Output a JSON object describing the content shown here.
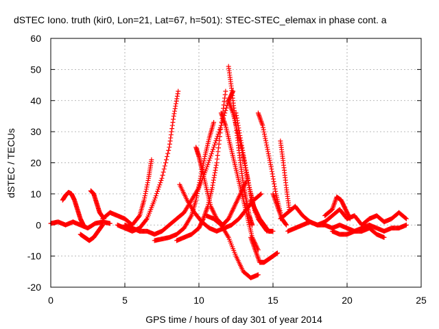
{
  "chart_data": {
    "type": "scatter",
    "title": "dSTEC Iono. truth (kir0, Lon=21, Lat=67, h=501): STEC-STEC_elemax in phase cont. a",
    "xlabel": "GPS time / hours of day 301 of year 2014",
    "ylabel": "dSTEC  / TECUs",
    "xlim": [
      0,
      25
    ],
    "ylim": [
      -20,
      60
    ],
    "xticks": [
      0,
      5,
      10,
      15,
      20,
      25
    ],
    "yticks": [
      -20,
      -10,
      0,
      10,
      20,
      30,
      40,
      50,
      60
    ],
    "grid": true,
    "marker": "+",
    "color": "#ff0000",
    "series": [
      {
        "name": "",
        "x": [
          0.0,
          0.5,
          1.0,
          1.5,
          2.0,
          2.5,
          3.0,
          3.5,
          4.0
        ],
        "y": [
          0.5,
          1.0,
          0.0,
          1.0,
          0.0,
          -1.0,
          0.5,
          1.0,
          0.5
        ]
      },
      {
        "name": "",
        "x": [
          0.8,
          1.0,
          1.2,
          1.4,
          1.6,
          1.8,
          2.0,
          2.2
        ],
        "y": [
          8,
          9.5,
          10.5,
          10,
          8,
          5,
          2,
          0
        ]
      },
      {
        "name": "",
        "x": [
          2.0,
          2.3,
          2.6,
          2.9,
          3.2,
          3.5
        ],
        "y": [
          -3,
          -4,
          -5,
          -4,
          -2,
          0
        ]
      },
      {
        "name": "",
        "x": [
          2.7,
          2.9,
          3.1,
          3.3,
          3.6
        ],
        "y": [
          11,
          10,
          7,
          4,
          2
        ]
      },
      {
        "name": "",
        "x": [
          3.5,
          4.0,
          4.5,
          5.0,
          5.5,
          6.0,
          6.3,
          6.6,
          6.8
        ],
        "y": [
          2,
          4,
          3,
          2,
          0,
          3,
          8,
          15,
          21
        ]
      },
      {
        "name": "",
        "x": [
          4.5,
          5.0,
          5.5,
          6.0,
          6.5,
          7.0,
          7.5,
          8.0,
          8.3,
          8.6
        ],
        "y": [
          0,
          -1,
          -2,
          -1,
          2,
          8,
          15,
          25,
          35,
          43
        ]
      },
      {
        "name": "",
        "x": [
          5.0,
          5.5,
          6.0,
          6.5,
          7.0,
          7.5,
          8.0,
          8.5,
          9.0,
          9.5,
          10.0,
          10.5,
          11.0,
          11.5,
          12.0,
          12.3
        ],
        "y": [
          0,
          -1,
          -2,
          -2,
          -3,
          -2,
          0,
          2,
          4,
          8,
          12,
          18,
          25,
          32,
          40,
          43
        ]
      },
      {
        "name": "",
        "x": [
          7.0,
          7.5,
          8.0,
          8.5,
          9.0,
          9.5,
          9.8,
          10.1,
          10.4,
          10.7,
          11.0
        ],
        "y": [
          -5,
          -4.5,
          -4,
          -3,
          -1,
          3,
          8,
          15,
          22,
          28,
          33
        ]
      },
      {
        "name": "",
        "x": [
          8.5,
          9.0,
          9.5,
          10.0,
          10.3,
          10.6,
          10.9,
          11.2,
          11.5,
          11.8
        ],
        "y": [
          -5,
          -4,
          -3,
          -1,
          2,
          6,
          12,
          20,
          32,
          43
        ]
      },
      {
        "name": "",
        "x": [
          8.7,
          9.2,
          9.7,
          10.2,
          10.7,
          11.2,
          11.7,
          12.2,
          12.7,
          13.2,
          13.7,
          14.2
        ],
        "y": [
          13,
          8,
          4,
          1,
          -1,
          -2,
          -1,
          0,
          2,
          5,
          8,
          10
        ]
      },
      {
        "name": "",
        "x": [
          9.8,
          10.0,
          10.2,
          10.5,
          10.8,
          11.2,
          11.6,
          12.0,
          12.4,
          12.8,
          13.2
        ],
        "y": [
          25,
          22,
          18,
          12,
          6,
          2,
          0,
          2,
          6,
          10,
          14
        ]
      },
      {
        "name": "",
        "x": [
          10.5,
          11.0,
          11.5,
          12.0,
          12.5,
          13.0,
          13.5,
          14.0
        ],
        "y": [
          3,
          2,
          0,
          -4,
          -10,
          -15,
          -17,
          -16
        ]
      },
      {
        "name": "",
        "x": [
          11.5,
          11.8,
          12.1,
          12.4,
          12.7,
          13.0,
          13.3,
          13.6,
          14.0
        ],
        "y": [
          36,
          32,
          26,
          20,
          14,
          8,
          2,
          -4,
          -8
        ]
      },
      {
        "name": "",
        "x": [
          12.0,
          12.3,
          12.6,
          12.9,
          13.2,
          13.5,
          13.8
        ],
        "y": [
          40,
          36,
          30,
          24,
          17,
          10,
          4
        ]
      },
      {
        "name": "",
        "x": [
          12.0,
          12.2,
          12.4,
          12.6,
          12.8,
          13.0,
          13.2,
          13.4,
          13.6
        ],
        "y": [
          51,
          44,
          36,
          28,
          20,
          13,
          8,
          3,
          0
        ]
      },
      {
        "name": "",
        "x": [
          12.5,
          12.8,
          13.1,
          13.4,
          13.7,
          14.0,
          14.3,
          14.6
        ],
        "y": [
          36,
          28,
          20,
          12,
          6,
          2,
          0,
          -2
        ]
      },
      {
        "name": "",
        "x": [
          13.5,
          13.8,
          14.1,
          14.4,
          14.7,
          15.0,
          15.3
        ],
        "y": [
          -4,
          -8,
          -12,
          -12,
          -11,
          -10,
          -9
        ]
      },
      {
        "name": "",
        "x": [
          14.0,
          14.3,
          14.6,
          14.9,
          15.2,
          15.5
        ],
        "y": [
          36,
          32,
          25,
          18,
          10,
          4
        ]
      },
      {
        "name": "",
        "x": [
          13.5,
          13.8,
          14.1,
          14.4,
          14.7,
          15.0
        ],
        "y": [
          8,
          5,
          2,
          0,
          -2,
          -2
        ]
      },
      {
        "name": "",
        "x": [
          15.0,
          15.3,
          15.6,
          15.9
        ],
        "y": [
          10,
          6,
          2,
          0
        ]
      },
      {
        "name": "",
        "x": [
          15.5,
          15.7,
          15.9,
          16.1
        ],
        "y": [
          27,
          20,
          12,
          5
        ]
      },
      {
        "name": "",
        "x": [
          15.5,
          16.0,
          16.5,
          17.0,
          17.5,
          18.0,
          18.5,
          19.0,
          19.5,
          20.0,
          20.5,
          21.0,
          21.5,
          22.0,
          22.5,
          23.0,
          23.5,
          24.0
        ],
        "y": [
          2,
          4,
          6,
          3,
          1,
          0,
          1,
          3,
          5,
          2,
          3,
          0,
          2,
          3,
          1,
          2,
          4,
          2
        ]
      },
      {
        "name": "",
        "x": [
          16.0,
          16.5,
          17.0,
          17.5,
          18.0,
          18.5,
          19.0,
          19.5,
          20.0,
          20.5,
          21.0,
          21.5,
          22.0,
          22.5,
          23.0,
          23.5,
          24.0
        ],
        "y": [
          -2,
          -1,
          0,
          1,
          0,
          0,
          -1,
          0,
          -1,
          -2,
          -1,
          0,
          -1,
          -2,
          -1,
          -1,
          0
        ]
      },
      {
        "name": "",
        "x": [
          18.5,
          19.0,
          19.3,
          19.6,
          19.9,
          20.2
        ],
        "y": [
          3,
          5,
          9,
          8,
          5,
          2
        ]
      },
      {
        "name": "",
        "x": [
          19.0,
          19.5,
          20.0,
          20.5,
          21.0,
          21.5,
          22.0,
          22.5
        ],
        "y": [
          -2,
          -3,
          -3,
          -2,
          -2,
          -1,
          -3,
          -4
        ]
      }
    ]
  }
}
